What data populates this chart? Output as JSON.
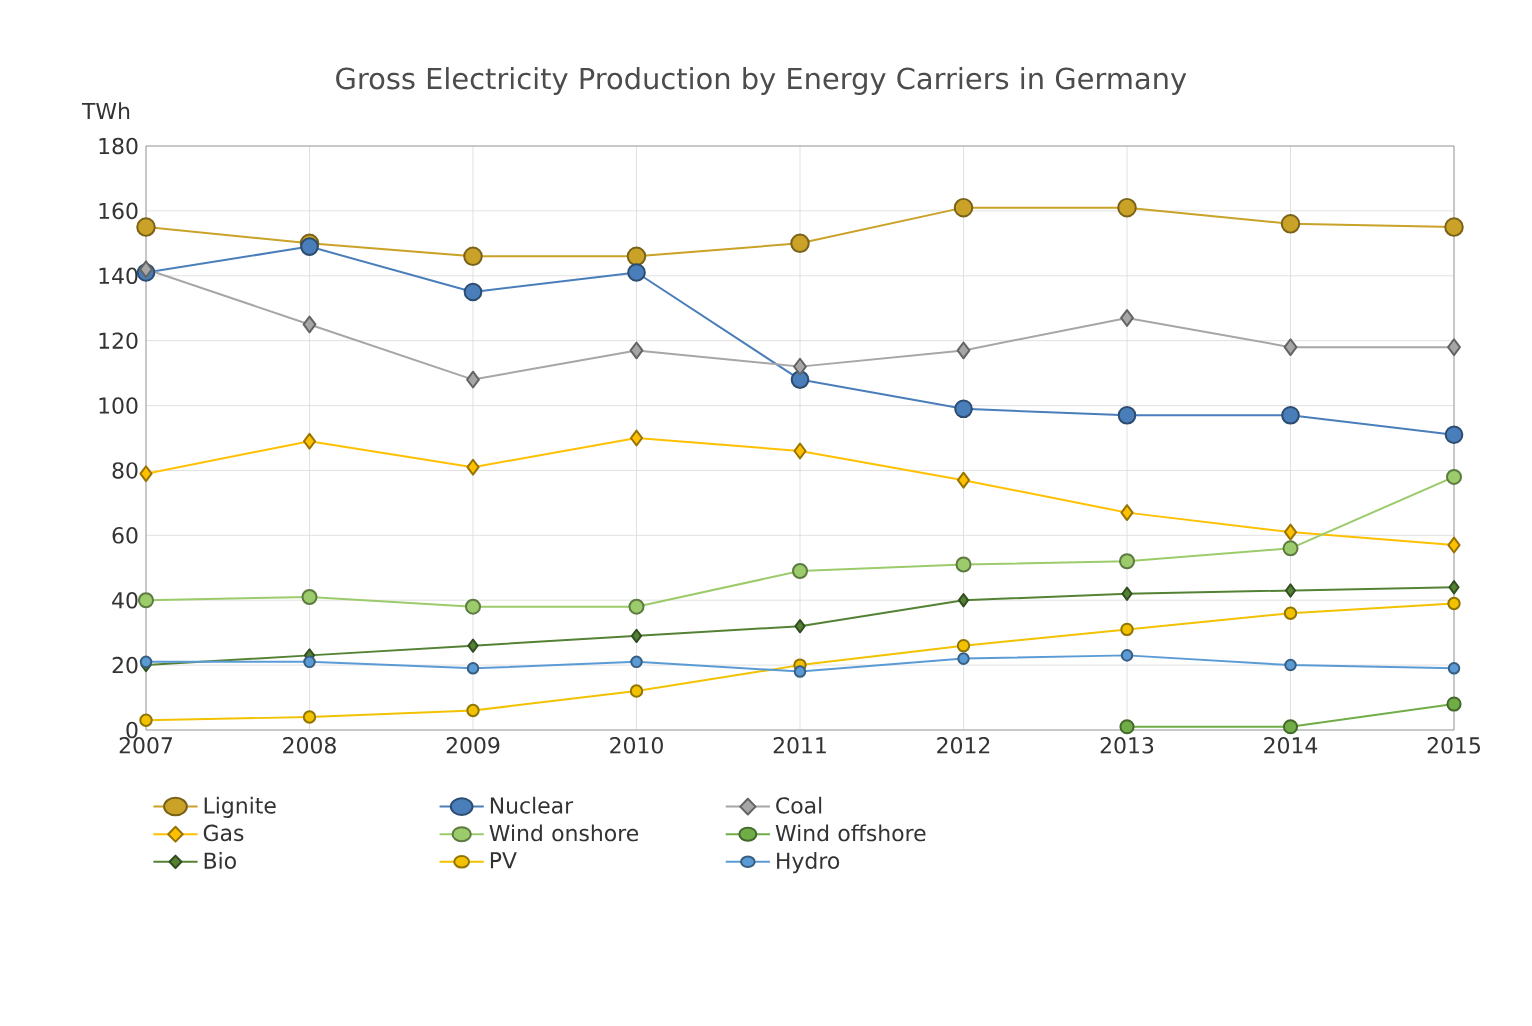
{
  "chart_data": {
    "type": "line",
    "title": "Gross Electricity Production by Energy Carriers in Germany",
    "ylabel": "TWh",
    "x": [
      2007,
      2008,
      2009,
      2010,
      2011,
      2012,
      2013,
      2014,
      2015
    ],
    "xlim": [
      2007,
      2015
    ],
    "xticks": [
      2007,
      2008,
      2009,
      2010,
      2011,
      2012,
      2013,
      2014,
      2015
    ],
    "ylim": [
      0,
      180
    ],
    "yticks": [
      0,
      20,
      40,
      60,
      80,
      100,
      120,
      140,
      160,
      180
    ],
    "grid": true,
    "legend": "bottom",
    "line_style": "solid",
    "series": [
      {
        "name": "Lignite",
        "color": "#c9a227",
        "marker": "circle",
        "values": [
          155,
          150,
          146,
          146,
          150,
          161,
          161,
          156,
          155
        ]
      },
      {
        "name": "Nuclear",
        "color": "#4a7ebb",
        "marker": "circle",
        "values": [
          141,
          149,
          135,
          141,
          108,
          99,
          97,
          97,
          91
        ]
      },
      {
        "name": "Coal",
        "color": "#a6a6a6",
        "marker": "diamond",
        "values": [
          142,
          125,
          108,
          117,
          112,
          117,
          127,
          118,
          118
        ]
      },
      {
        "name": "Gas",
        "color": "#ffc000",
        "marker": "diamond",
        "values": [
          79,
          89,
          81,
          90,
          86,
          77,
          67,
          61,
          57
        ]
      },
      {
        "name": "Wind onshore",
        "color": "#9bcb6b",
        "marker": "circle",
        "values": [
          40,
          41,
          38,
          38,
          49,
          51,
          52,
          56,
          78
        ]
      },
      {
        "name": "Wind offshore",
        "color": "#70ad47",
        "marker": "circle",
        "values": [
          null,
          null,
          null,
          null,
          null,
          null,
          1,
          1,
          8
        ]
      },
      {
        "name": "Bio",
        "color": "#548235",
        "marker": "diamond",
        "values": [
          20,
          23,
          26,
          29,
          32,
          40,
          42,
          43,
          44
        ]
      },
      {
        "name": "PV",
        "color": "#f2c200",
        "marker": "circle",
        "values": [
          3,
          4,
          6,
          12,
          20,
          26,
          31,
          36,
          39
        ]
      },
      {
        "name": "Hydro",
        "color": "#5b9bd5",
        "marker": "circle",
        "values": [
          21,
          21,
          19,
          21,
          18,
          22,
          23,
          20,
          19
        ]
      }
    ]
  }
}
